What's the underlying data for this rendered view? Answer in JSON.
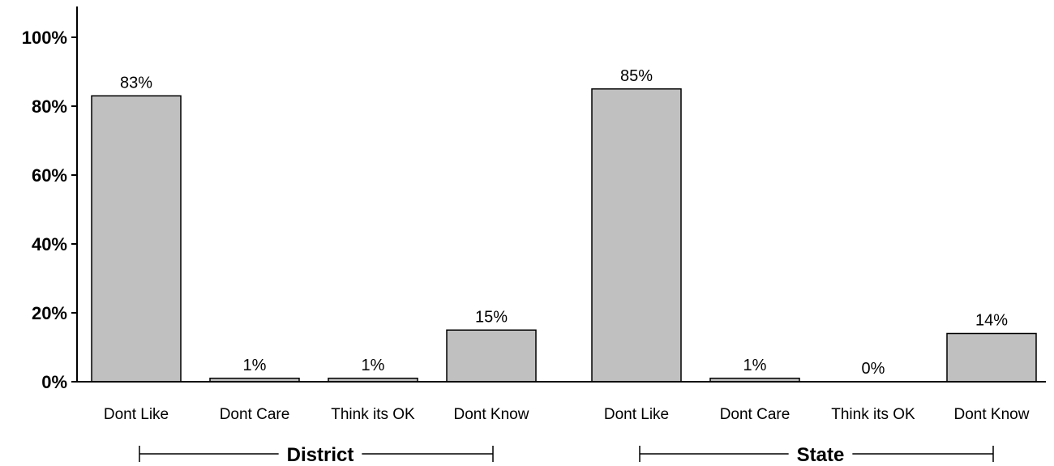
{
  "chart_data": {
    "type": "bar",
    "ylim": [
      0,
      100
    ],
    "yticks": [
      0,
      20,
      40,
      60,
      80,
      100
    ],
    "ytick_labels": [
      "0%",
      "20%",
      "40%",
      "60%",
      "80%",
      "100%"
    ],
    "grid": false,
    "groups": [
      {
        "name": "District",
        "categories": [
          "Dont Like",
          "Dont Care",
          "Think its OK",
          "Dont Know"
        ],
        "values": [
          83,
          1,
          1,
          15
        ],
        "labels": [
          "83%",
          "1%",
          "1%",
          "15%"
        ]
      },
      {
        "name": "State",
        "categories": [
          "Dont Like",
          "Dont Care",
          "Think its OK",
          "Dont Know"
        ],
        "values": [
          85,
          1,
          0,
          14
        ],
        "labels": [
          "85%",
          "1%",
          "0%",
          "14%"
        ]
      }
    ],
    "colors": {
      "bar": "#c0c0c0",
      "bar_stroke": "#000000",
      "axis": "#000000"
    }
  }
}
